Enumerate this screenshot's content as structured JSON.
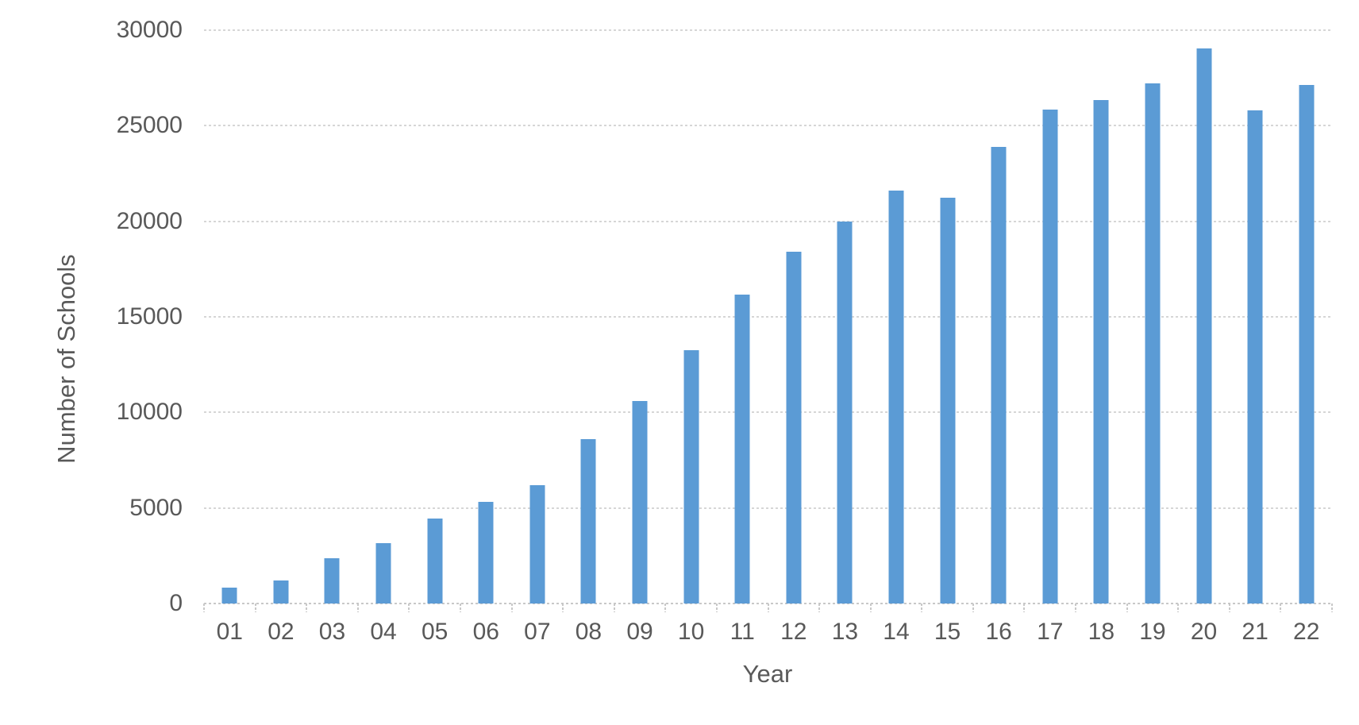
{
  "chart_data": {
    "type": "bar",
    "title": "",
    "xlabel": "Year",
    "ylabel": "Number of Schools",
    "categories": [
      "01",
      "02",
      "03",
      "04",
      "05",
      "06",
      "07",
      "08",
      "09",
      "10",
      "11",
      "12",
      "13",
      "14",
      "15",
      "16",
      "17",
      "18",
      "19",
      "20",
      "21",
      "22"
    ],
    "values": [
      850,
      1200,
      2350,
      3150,
      4450,
      5300,
      6200,
      8600,
      10600,
      13250,
      16150,
      18400,
      20000,
      21600,
      21250,
      23900,
      25850,
      26350,
      27200,
      29050,
      25800,
      27150
    ],
    "ylim": [
      0,
      30000
    ],
    "yticks": [
      0,
      5000,
      10000,
      15000,
      20000,
      25000,
      30000
    ],
    "ytick_labels": [
      "0",
      "5000",
      "10000",
      "15000",
      "20000",
      "25000",
      "30000"
    ],
    "grid": "horizontal-dotted",
    "legend_position": "none",
    "bar_color": "#5b9bd5",
    "gridline_color": "#d6d6d6",
    "axis_color": "#c8c8c8",
    "text_color": "#595959"
  }
}
